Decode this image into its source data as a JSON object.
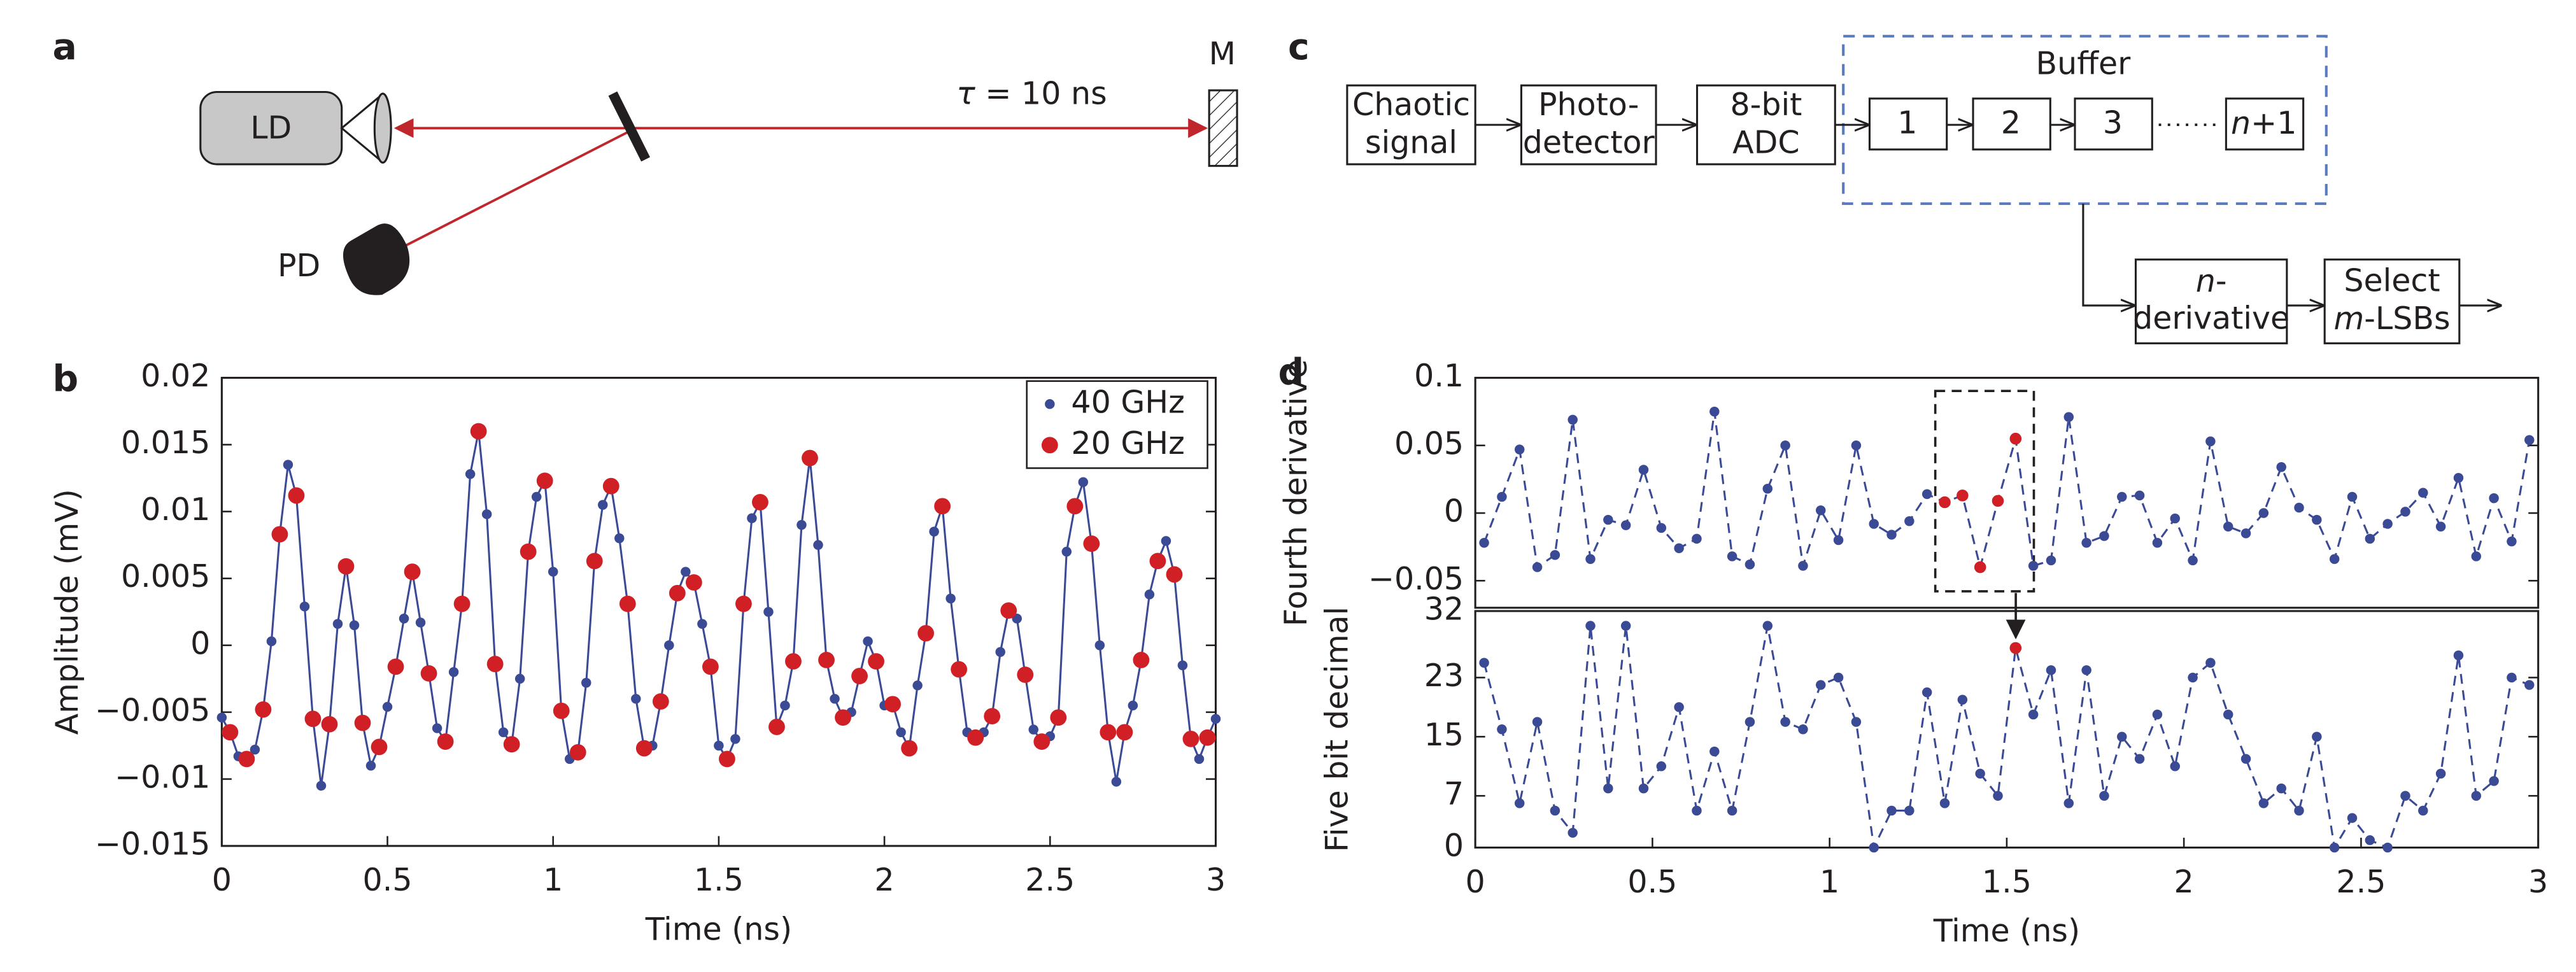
{
  "panel_labels": [
    "a",
    "b",
    "c",
    "d"
  ],
  "setup_diagram": {
    "laser": "LD",
    "detector": "PD",
    "mirror": "M",
    "delay": [
      "τ",
      " = 10 ns"
    ]
  },
  "block_diagram": {
    "chaotic": [
      "Chaotic",
      "signal"
    ],
    "photodetector": [
      "Photo-",
      "detector"
    ],
    "adc": [
      "8-bit",
      "ADC"
    ],
    "buffer": "Buffer",
    "cells": [
      "1",
      "2",
      "3"
    ],
    "last_cell": [
      "n",
      "+1"
    ],
    "derivative": [
      "n",
      "-",
      "derivative"
    ],
    "select": [
      "Select",
      "m",
      "-LSBs"
    ]
  },
  "chart_data": [
    {
      "type": "line",
      "xlabel": "Time (ns)",
      "ylabel": "Amplitude (mV)",
      "xlim": [
        0,
        3
      ],
      "xticks": [
        0,
        0.5,
        1,
        1.5,
        2,
        2.5,
        3
      ],
      "ylim": [
        -0.015,
        0.02
      ],
      "yticks": [
        {
          "value": -0.015,
          "label": "−0.015"
        },
        {
          "value": -0.01,
          "label": "−0.01"
        },
        {
          "value": -0.005,
          "label": "−0.005"
        },
        0,
        0.005,
        0.01,
        0.015,
        0.02
      ],
      "legend": "upper right",
      "series": [
        {
          "name": "40 GHz",
          "color": "#3b4a94",
          "linestyle": "solid",
          "x": [
            0,
            0.025,
            0.05,
            0.075,
            0.1,
            0.125,
            0.15,
            0.175,
            0.2,
            0.225,
            0.25,
            0.275,
            0.3,
            0.325,
            0.35,
            0.375,
            0.4,
            0.425,
            0.45,
            0.475,
            0.5,
            0.525,
            0.55,
            0.575,
            0.6,
            0.625,
            0.65,
            0.675,
            0.7,
            0.725,
            0.75,
            0.775,
            0.8,
            0.825,
            0.85,
            0.875,
            0.9,
            0.925,
            0.95,
            0.975,
            1,
            1.025,
            1.05,
            1.075,
            1.1,
            1.125,
            1.15,
            1.175,
            1.2,
            1.225,
            1.25,
            1.275,
            1.3,
            1.325,
            1.35,
            1.375,
            1.4,
            1.425,
            1.45,
            1.475,
            1.5,
            1.525,
            1.55,
            1.575,
            1.6,
            1.625,
            1.65,
            1.675,
            1.7,
            1.725,
            1.75,
            1.775,
            1.8,
            1.825,
            1.85,
            1.875,
            1.9,
            1.925,
            1.95,
            1.975,
            2,
            2.025,
            2.05,
            2.075,
            2.1,
            2.125,
            2.15,
            2.175,
            2.2,
            2.225,
            2.25,
            2.275,
            2.3,
            2.325,
            2.35,
            2.375,
            2.4,
            2.425,
            2.45,
            2.475,
            2.5,
            2.525,
            2.55,
            2.575,
            2.6,
            2.625,
            2.65,
            2.675,
            2.7,
            2.725,
            2.75,
            2.775,
            2.8,
            2.825,
            2.85,
            2.875,
            2.9,
            2.925,
            2.95,
            2.975,
            3
          ],
          "values": [
            -0.0054,
            -0.0065,
            -0.0083,
            -0.0085,
            -0.0078,
            -0.0048,
            0.0003,
            0.0083,
            0.0135,
            0.0112,
            0.0029,
            -0.0055,
            -0.0105,
            -0.0059,
            0.0016,
            0.0059,
            0.0015,
            -0.0058,
            -0.009,
            -0.0076,
            -0.0046,
            -0.0016,
            0.002,
            0.0055,
            0.0017,
            -0.0021,
            -0.0062,
            -0.0072,
            -0.002,
            0.0031,
            0.0128,
            0.016,
            0.0098,
            -0.0014,
            -0.0065,
            -0.0074,
            -0.0025,
            0.007,
            0.0111,
            0.0123,
            0.0055,
            -0.0049,
            -0.0085,
            -0.008,
            -0.0028,
            0.0063,
            0.0105,
            0.0119,
            0.008,
            0.0031,
            -0.004,
            -0.0077,
            -0.0075,
            -0.0042,
            0,
            0.0039,
            0.0055,
            0.0047,
            0.0016,
            -0.0016,
            -0.0075,
            -0.0085,
            -0.007,
            0.0031,
            0.0095,
            0.0107,
            0.0025,
            -0.0061,
            -0.0045,
            -0.0012,
            0.009,
            0.014,
            0.0075,
            -0.0011,
            -0.004,
            -0.0054,
            -0.005,
            -0.0023,
            0.0003,
            -0.0012,
            -0.0045,
            -0.0044,
            -0.0065,
            -0.0077,
            -0.003,
            0.0009,
            0.0085,
            0.0104,
            0.0035,
            -0.0018,
            -0.0065,
            -0.0069,
            -0.0065,
            -0.0053,
            -0.0005,
            0.0026,
            0.002,
            -0.0022,
            -0.0063,
            -0.0072,
            -0.0068,
            -0.0054,
            0.007,
            0.0104,
            0.0122,
            0.0076,
            0,
            -0.0065,
            -0.0102,
            -0.0065,
            -0.0045,
            -0.0011,
            0.0038,
            0.0063,
            0.0078,
            0.0053,
            -0.0015,
            -0.007,
            -0.0085,
            -0.0069,
            -0.0055
          ]
        },
        {
          "name": "20 GHz",
          "color": "#d02026",
          "linestyle": "none",
          "x": [
            0.025,
            0.075,
            0.125,
            0.175,
            0.225,
            0.275,
            0.325,
            0.375,
            0.425,
            0.475,
            0.525,
            0.575,
            0.625,
            0.675,
            0.725,
            0.775,
            0.825,
            0.875,
            0.925,
            0.975,
            1.025,
            1.075,
            1.125,
            1.175,
            1.225,
            1.275,
            1.325,
            1.375,
            1.425,
            1.475,
            1.525,
            1.575,
            1.625,
            1.675,
            1.725,
            1.775,
            1.825,
            1.875,
            1.925,
            1.975,
            2.025,
            2.075,
            2.125,
            2.175,
            2.225,
            2.275,
            2.325,
            2.375,
            2.425,
            2.475,
            2.525,
            2.575,
            2.625,
            2.675,
            2.725,
            2.775,
            2.825,
            2.875,
            2.925,
            2.975
          ],
          "values": [
            -0.0065,
            -0.0085,
            -0.0048,
            0.0083,
            0.0112,
            -0.0055,
            -0.0059,
            0.0059,
            -0.0058,
            -0.0076,
            -0.0016,
            0.0055,
            -0.0021,
            -0.0072,
            0.0031,
            0.016,
            -0.0014,
            -0.0074,
            0.007,
            0.0123,
            -0.0049,
            -0.008,
            0.0063,
            0.0119,
            0.0031,
            -0.0077,
            -0.0042,
            0.0039,
            0.0047,
            -0.0016,
            -0.0085,
            0.0031,
            0.0107,
            -0.0061,
            -0.0012,
            0.014,
            -0.0011,
            -0.0054,
            -0.0023,
            -0.0012,
            -0.0044,
            -0.0077,
            0.0009,
            0.0104,
            -0.0018,
            -0.0069,
            -0.0053,
            0.0026,
            -0.0022,
            -0.0072,
            -0.0054,
            0.0104,
            0.0076,
            -0.0065,
            -0.0065,
            -0.0011,
            0.0063,
            0.0053,
            -0.007,
            -0.0069
          ]
        }
      ]
    },
    {
      "type": "line",
      "ylabel": "Fourth derivative",
      "xlim": [
        0,
        3
      ],
      "ylim": [
        -0.07,
        0.1
      ],
      "yticks": [
        {
          "value": -0.05,
          "label": "−0.05"
        },
        0,
        0.05,
        0.1
      ],
      "series": [
        {
          "color": "#3b4a94",
          "linestyle": "dashed",
          "x": [
            0.025,
            0.075,
            0.125,
            0.175,
            0.225,
            0.275,
            0.325,
            0.375,
            0.425,
            0.475,
            0.525,
            0.575,
            0.625,
            0.675,
            0.725,
            0.775,
            0.825,
            0.875,
            0.925,
            0.975,
            1.025,
            1.075,
            1.125,
            1.175,
            1.225,
            1.275,
            1.325,
            1.375,
            1.425,
            1.475,
            1.525,
            1.575,
            1.625,
            1.675,
            1.725,
            1.775,
            1.825,
            1.875,
            1.925,
            1.975,
            2.025,
            2.075,
            2.125,
            2.175,
            2.225,
            2.275,
            2.325,
            2.375,
            2.425,
            2.475,
            2.525,
            2.575,
            2.625,
            2.675,
            2.725,
            2.775,
            2.825,
            2.875,
            2.925,
            2.975
          ],
          "values": [
            -0.022,
            0.012,
            0.047,
            -0.04,
            -0.031,
            0.069,
            -0.034,
            -0.005,
            -0.009,
            0.032,
            -0.011,
            -0.026,
            -0.019,
            0.075,
            -0.032,
            -0.038,
            0.018,
            0.05,
            -0.039,
            0.002,
            -0.02,
            0.05,
            -0.008,
            -0.016,
            -0.006,
            0.014,
            0.008,
            0.013,
            -0.04,
            0.009,
            0.055,
            -0.039,
            -0.035,
            0.071,
            -0.022,
            -0.017,
            0.012,
            0.013,
            -0.022,
            -0.004,
            -0.035,
            0.053,
            -0.01,
            -0.015,
            0,
            0.034,
            0.004,
            -0.005,
            -0.034,
            0.012,
            -0.019,
            -0.008,
            0.001,
            0.015,
            -0.01,
            0.026,
            -0.032,
            0.011,
            -0.021,
            0.054
          ]
        },
        {
          "color": "#d02026",
          "linestyle": "none",
          "x": [
            1.325,
            1.375,
            1.425,
            1.475,
            1.525
          ],
          "values": [
            0.008,
            0.013,
            -0.04,
            0.009,
            0.055
          ]
        }
      ]
    },
    {
      "type": "line",
      "xlabel": "Time (ns)",
      "ylabel": "Five bit decimal",
      "xlim": [
        0,
        3
      ],
      "xticks": [
        0,
        0.5,
        1,
        1.5,
        2,
        2.5,
        3
      ],
      "ylim": [
        0,
        32
      ],
      "yticks": [
        0,
        7,
        15,
        23,
        32
      ],
      "series": [
        {
          "color": "#3b4a94",
          "linestyle": "dashed",
          "x": [
            0.025,
            0.075,
            0.125,
            0.175,
            0.225,
            0.275,
            0.325,
            0.375,
            0.425,
            0.475,
            0.525,
            0.575,
            0.625,
            0.675,
            0.725,
            0.775,
            0.825,
            0.875,
            0.925,
            0.975,
            1.025,
            1.075,
            1.125,
            1.175,
            1.225,
            1.275,
            1.325,
            1.375,
            1.425,
            1.475,
            1.525,
            1.575,
            1.625,
            1.675,
            1.725,
            1.775,
            1.825,
            1.875,
            1.925,
            1.975,
            2.025,
            2.075,
            2.125,
            2.175,
            2.225,
            2.275,
            2.325,
            2.375,
            2.425,
            2.475,
            2.525,
            2.575,
            2.625,
            2.675,
            2.725,
            2.775,
            2.825,
            2.875,
            2.925,
            2.975
          ],
          "values": [
            25,
            16,
            6,
            17,
            5,
            2,
            30,
            8,
            30,
            8,
            11,
            19,
            5,
            13,
            5,
            17,
            30,
            17,
            16,
            22,
            23,
            17,
            0,
            5,
            5,
            21,
            6,
            20,
            10,
            7,
            27,
            18,
            24,
            6,
            24,
            7,
            15,
            12,
            18,
            11,
            23,
            25,
            18,
            12,
            6,
            8,
            5,
            15,
            0,
            4,
            1,
            0,
            7,
            5,
            10,
            26,
            7,
            9,
            23,
            22
          ]
        },
        {
          "color": "#d02026",
          "linestyle": "none",
          "x": [
            1.525
          ],
          "values": [
            27
          ]
        }
      ]
    }
  ]
}
